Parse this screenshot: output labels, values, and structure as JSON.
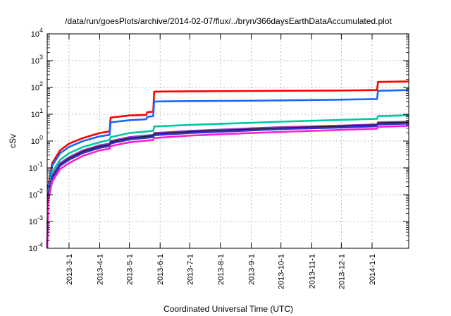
{
  "chart_data": {
    "type": "line",
    "title": "/data/run/goesPlots/archive/2014-02-07/flux/../bryn/366daysEarthDataAccumulated.plot",
    "xlabel": "Coordinated Universal Time (UTC)",
    "ylabel": "cSv",
    "y_scale": "log",
    "ylim": [
      0.0001,
      10000
    ],
    "xlim": [
      "2013-02-07",
      "2014-02-07"
    ],
    "grid": true,
    "legend": "none",
    "y_ticks": [
      {
        "value": 0.0001,
        "base": "10",
        "exp": "-4"
      },
      {
        "value": 0.001,
        "base": "10",
        "exp": "-3"
      },
      {
        "value": 0.01,
        "base": "10",
        "exp": "-2"
      },
      {
        "value": 0.1,
        "base": "10",
        "exp": "-1"
      },
      {
        "value": 1,
        "base": "10",
        "exp": "0"
      },
      {
        "value": 10,
        "base": "10",
        "exp": "1"
      },
      {
        "value": 100,
        "base": "10",
        "exp": "2"
      },
      {
        "value": 1000,
        "base": "10",
        "exp": "3"
      },
      {
        "value": 10000,
        "base": "10",
        "exp": "4"
      }
    ],
    "x_ticks": [
      {
        "date": "2013-03-01",
        "label": "2013-3-1"
      },
      {
        "date": "2013-04-01",
        "label": "2013-4-1"
      },
      {
        "date": "2013-05-01",
        "label": "2013-5-1"
      },
      {
        "date": "2013-06-01",
        "label": "2013-6-1"
      },
      {
        "date": "2013-07-01",
        "label": "2013-7-1"
      },
      {
        "date": "2013-08-01",
        "label": "2013-8-1"
      },
      {
        "date": "2013-09-01",
        "label": "2013-9-1"
      },
      {
        "date": "2013-10-01",
        "label": "2013-10-1"
      },
      {
        "date": "2013-11-01",
        "label": "2013-11-1"
      },
      {
        "date": "2013-12-01",
        "label": "2013-12-1"
      },
      {
        "date": "2014-01-01",
        "label": "2014-1-1"
      }
    ],
    "series": [
      {
        "color": "#ff0000",
        "points": [
          [
            "2013-02-07",
            0.0001
          ],
          [
            "2013-02-08",
            0.02
          ],
          [
            "2013-02-12",
            0.15
          ],
          [
            "2013-02-20",
            0.45
          ],
          [
            "2013-03-01",
            0.8
          ],
          [
            "2013-03-15",
            1.3
          ],
          [
            "2013-04-01",
            2.0
          ],
          [
            "2013-04-11",
            2.3
          ],
          [
            "2013-04-12",
            7.5
          ],
          [
            "2013-05-01",
            9.0
          ],
          [
            "2013-05-18",
            9.5
          ],
          [
            "2013-05-19",
            12.0
          ],
          [
            "2013-05-25",
            12.5
          ],
          [
            "2013-05-26",
            70
          ],
          [
            "2013-07-01",
            72
          ],
          [
            "2013-09-01",
            74
          ],
          [
            "2013-10-01",
            75
          ],
          [
            "2013-12-01",
            77
          ],
          [
            "2014-01-06",
            80
          ],
          [
            "2014-01-07",
            160
          ],
          [
            "2014-02-07",
            168
          ]
        ]
      },
      {
        "color": "#1a66ff",
        "points": [
          [
            "2013-02-07",
            0.0001
          ],
          [
            "2013-02-08",
            0.015
          ],
          [
            "2013-02-12",
            0.12
          ],
          [
            "2013-02-20",
            0.35
          ],
          [
            "2013-03-01",
            0.6
          ],
          [
            "2013-03-15",
            1.0
          ],
          [
            "2013-04-01",
            1.5
          ],
          [
            "2013-04-11",
            1.7
          ],
          [
            "2013-04-12",
            5.0
          ],
          [
            "2013-05-01",
            6.0
          ],
          [
            "2013-05-18",
            6.5
          ],
          [
            "2013-05-19",
            8.0
          ],
          [
            "2013-05-25",
            8.5
          ],
          [
            "2013-05-26",
            30
          ],
          [
            "2013-07-01",
            31
          ],
          [
            "2013-09-01",
            32
          ],
          [
            "2013-10-01",
            33
          ],
          [
            "2013-12-01",
            35
          ],
          [
            "2014-01-06",
            37
          ],
          [
            "2014-01-07",
            75
          ],
          [
            "2014-02-07",
            80
          ]
        ]
      },
      {
        "color": "#00c8a0",
        "points": [
          [
            "2013-02-07",
            0.0001
          ],
          [
            "2013-02-08",
            0.012
          ],
          [
            "2013-02-12",
            0.07
          ],
          [
            "2013-02-20",
            0.2
          ],
          [
            "2013-03-01",
            0.35
          ],
          [
            "2013-03-15",
            0.6
          ],
          [
            "2013-04-01",
            0.9
          ],
          [
            "2013-04-11",
            1.1
          ],
          [
            "2013-04-12",
            1.4
          ],
          [
            "2013-05-01",
            2.0
          ],
          [
            "2013-05-25",
            2.4
          ],
          [
            "2013-05-26",
            3.5
          ],
          [
            "2013-07-01",
            4.0
          ],
          [
            "2013-09-01",
            4.8
          ],
          [
            "2013-10-01",
            5.3
          ],
          [
            "2013-12-01",
            6.2
          ],
          [
            "2014-01-06",
            6.8
          ],
          [
            "2014-01-07",
            8.5
          ],
          [
            "2014-02-07",
            9.2
          ]
        ]
      },
      {
        "color": "#9933cc",
        "points": [
          [
            "2013-02-07",
            0.0001
          ],
          [
            "2013-02-08",
            0.01
          ],
          [
            "2013-02-12",
            0.05
          ],
          [
            "2013-02-20",
            0.15
          ],
          [
            "2013-03-01",
            0.25
          ],
          [
            "2013-03-15",
            0.45
          ],
          [
            "2013-04-01",
            0.7
          ],
          [
            "2013-04-11",
            0.8
          ],
          [
            "2013-04-12",
            1.0
          ],
          [
            "2013-05-01",
            1.4
          ],
          [
            "2013-05-25",
            1.7
          ],
          [
            "2013-05-26",
            2.0
          ],
          [
            "2013-07-01",
            2.4
          ],
          [
            "2013-09-01",
            3.0
          ],
          [
            "2013-10-01",
            3.3
          ],
          [
            "2013-12-01",
            3.8
          ],
          [
            "2014-01-06",
            4.2
          ],
          [
            "2014-01-07",
            5.0
          ],
          [
            "2014-02-07",
            5.3
          ]
        ]
      },
      {
        "color": "#222222",
        "points": [
          [
            "2013-02-07",
            0.0001
          ],
          [
            "2013-02-08",
            0.009
          ],
          [
            "2013-02-12",
            0.045
          ],
          [
            "2013-02-20",
            0.13
          ],
          [
            "2013-03-01",
            0.22
          ],
          [
            "2013-03-15",
            0.4
          ],
          [
            "2013-04-01",
            0.62
          ],
          [
            "2013-04-11",
            0.72
          ],
          [
            "2013-04-12",
            0.9
          ],
          [
            "2013-05-01",
            1.25
          ],
          [
            "2013-05-25",
            1.55
          ],
          [
            "2013-05-26",
            1.8
          ],
          [
            "2013-07-01",
            2.2
          ],
          [
            "2013-09-01",
            2.7
          ],
          [
            "2013-10-01",
            3.0
          ],
          [
            "2013-12-01",
            3.5
          ],
          [
            "2014-01-06",
            3.9
          ],
          [
            "2014-01-07",
            4.6
          ],
          [
            "2014-02-07",
            4.9
          ]
        ]
      },
      {
        "color": "#3333cc",
        "points": [
          [
            "2013-02-07",
            0.0001
          ],
          [
            "2013-02-08",
            0.008
          ],
          [
            "2013-02-12",
            0.04
          ],
          [
            "2013-02-20",
            0.12
          ],
          [
            "2013-03-01",
            0.2
          ],
          [
            "2013-03-15",
            0.36
          ],
          [
            "2013-04-01",
            0.56
          ],
          [
            "2013-04-11",
            0.65
          ],
          [
            "2013-04-12",
            0.82
          ],
          [
            "2013-05-01",
            1.15
          ],
          [
            "2013-05-25",
            1.4
          ],
          [
            "2013-05-26",
            1.65
          ],
          [
            "2013-07-01",
            2.0
          ],
          [
            "2013-09-01",
            2.5
          ],
          [
            "2013-10-01",
            2.8
          ],
          [
            "2013-12-01",
            3.2
          ],
          [
            "2014-01-06",
            3.6
          ],
          [
            "2014-01-07",
            4.2
          ],
          [
            "2014-02-07",
            4.5
          ]
        ]
      },
      {
        "color": "#ff22cc",
        "points": [
          [
            "2013-02-07",
            0.0001
          ],
          [
            "2013-02-08",
            0.006
          ],
          [
            "2013-02-12",
            0.03
          ],
          [
            "2013-02-20",
            0.09
          ],
          [
            "2013-03-01",
            0.15
          ],
          [
            "2013-03-15",
            0.28
          ],
          [
            "2013-04-01",
            0.45
          ],
          [
            "2013-04-11",
            0.52
          ],
          [
            "2013-04-12",
            0.65
          ],
          [
            "2013-05-01",
            0.9
          ],
          [
            "2013-05-25",
            1.1
          ],
          [
            "2013-05-26",
            1.3
          ],
          [
            "2013-07-01",
            1.6
          ],
          [
            "2013-09-01",
            2.0
          ],
          [
            "2013-10-01",
            2.2
          ],
          [
            "2013-12-01",
            2.6
          ],
          [
            "2014-01-06",
            2.9
          ],
          [
            "2014-01-07",
            3.4
          ],
          [
            "2014-02-07",
            3.7
          ]
        ]
      }
    ]
  }
}
